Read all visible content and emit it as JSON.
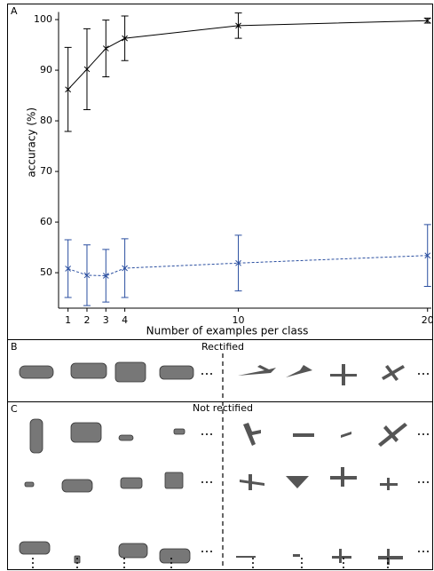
{
  "chart_data": {
    "type": "line",
    "x_label": "Number of examples per class",
    "y_label": "accuracy (%)",
    "x": [
      1,
      2,
      3,
      4,
      10,
      20
    ],
    "series": [
      {
        "color": "#000000",
        "line_style": "solid",
        "values": [
          86.2,
          90.2,
          94.3,
          96.3,
          98.8,
          99.8
        ],
        "errors": [
          8.3,
          8.0,
          5.6,
          4.4,
          2.5,
          0.5
        ]
      },
      {
        "color": "#2b4fa0",
        "line_style": "dashed",
        "values": [
          50.8,
          49.5,
          49.4,
          50.9,
          51.9,
          53.4
        ],
        "errors": [
          5.7,
          6.0,
          5.2,
          5.8,
          5.5,
          6.1
        ]
      }
    ],
    "xlim": [
      0.5,
      20.2
    ],
    "ylim": [
      43,
      101.5
    ],
    "xticks": [
      1,
      2,
      3,
      4,
      10,
      20
    ],
    "yticks": [
      50,
      60,
      70,
      80,
      90,
      100
    ]
  },
  "panels": {
    "a": "A",
    "b": "B",
    "c": "C",
    "b_title": "Rectified",
    "c_title": "Not rectified"
  }
}
